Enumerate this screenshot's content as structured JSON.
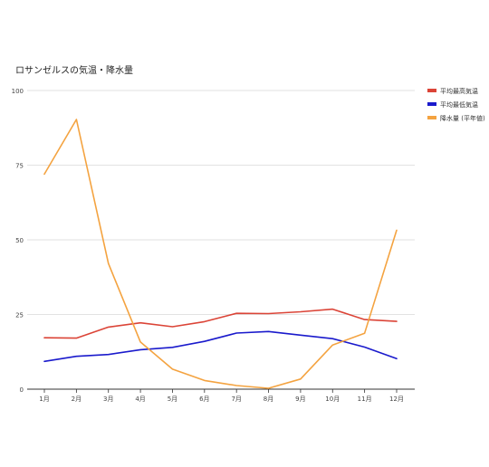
{
  "chart_data": {
    "type": "line",
    "title": "ロサンゼルスの気温・降水量",
    "xlabel": "",
    "ylabel": "",
    "ylim": [
      0,
      100
    ],
    "yticks": [
      0,
      25,
      50,
      75,
      100
    ],
    "grid": true,
    "legend_position": "right",
    "categories": [
      "1月",
      "2月",
      "3月",
      "4月",
      "5月",
      "6月",
      "7月",
      "8月",
      "9月",
      "10月",
      "11月",
      "12月"
    ],
    "series": [
      {
        "name": "平均最高気温",
        "color": "#db4437",
        "values": [
          17.2,
          17.1,
          20.8,
          22.2,
          20.9,
          22.6,
          25.4,
          25.3,
          25.9,
          26.8,
          23.3,
          22.7
        ]
      },
      {
        "name": "平均最低気温",
        "color": "#1a1acc",
        "values": [
          9.3,
          11.0,
          11.6,
          13.2,
          14.0,
          16.0,
          18.8,
          19.3,
          18.1,
          16.9,
          14.1,
          10.2
        ]
      },
      {
        "name": "降水量 (平年値)",
        "color": "#f4a340",
        "values": [
          72.0,
          90.3,
          42.1,
          15.8,
          6.7,
          2.9,
          1.2,
          0.3,
          3.4,
          14.8,
          18.7,
          53.2
        ]
      }
    ]
  }
}
